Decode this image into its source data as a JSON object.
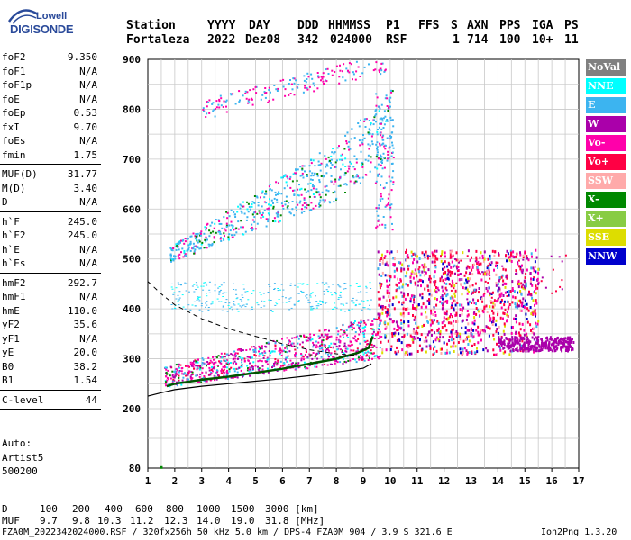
{
  "logo": {
    "line1": "Lowell",
    "line2": "DIGISONDE"
  },
  "header": {
    "labels": [
      "Station",
      "YYYY",
      "DAY",
      "DDD",
      "HHMMSS",
      "P1",
      "FFS",
      "S",
      "AXN",
      "PPS",
      "IGA",
      "PS"
    ],
    "values": [
      "Fortaleza",
      "2022",
      "Dez08",
      "342",
      "024000",
      "RSF",
      "1",
      "714",
      "100",
      "10+",
      "11"
    ]
  },
  "params": {
    "group1": [
      {
        "name": "foF2",
        "value": "9.350"
      },
      {
        "name": "foF1",
        "value": "N/A"
      },
      {
        "name": "foF1p",
        "value": "N/A"
      },
      {
        "name": "foE",
        "value": "N/A"
      },
      {
        "name": "foEp",
        "value": "0.53"
      },
      {
        "name": "fxI",
        "value": "9.70"
      },
      {
        "name": "foEs",
        "value": "N/A"
      },
      {
        "name": "fmin",
        "value": "1.75"
      }
    ],
    "group2": [
      {
        "name": "MUF(D)",
        "value": "31.77"
      },
      {
        "name": "M(D)",
        "value": "3.40"
      },
      {
        "name": "D",
        "value": "N/A"
      }
    ],
    "group3": [
      {
        "name": "h`F",
        "value": "245.0"
      },
      {
        "name": "h`F2",
        "value": "245.0"
      },
      {
        "name": "h`E",
        "value": "N/A"
      },
      {
        "name": "h`Es",
        "value": "N/A"
      }
    ],
    "group4": [
      {
        "name": "hmF2",
        "value": "292.7"
      },
      {
        "name": "hmF1",
        "value": "N/A"
      },
      {
        "name": "hmE",
        "value": "110.0"
      },
      {
        "name": "yF2",
        "value": "35.6"
      },
      {
        "name": "yF1",
        "value": "N/A"
      },
      {
        "name": "yE",
        "value": "20.0"
      },
      {
        "name": "B0",
        "value": "38.2"
      },
      {
        "name": "B1",
        "value": "1.54"
      }
    ],
    "group5": [
      {
        "name": "C-level",
        "value": "44"
      }
    ],
    "auto": [
      "Auto:",
      "Artist5",
      "500200"
    ]
  },
  "legend": [
    {
      "label": "NoVal",
      "color": "#808080"
    },
    {
      "label": "NNE",
      "color": "#00ffff"
    },
    {
      "label": "E",
      "color": "#3cb4f0"
    },
    {
      "label": "W",
      "color": "#aa00aa"
    },
    {
      "label": "Vo-",
      "color": "#ff00aa"
    },
    {
      "label": "Vo+",
      "color": "#ff0044"
    },
    {
      "label": "SSW",
      "color": "#ffaaaa"
    },
    {
      "label": "X-",
      "color": "#008800"
    },
    {
      "label": "X+",
      "color": "#88cc44"
    },
    {
      "label": "SSE",
      "color": "#dddd00"
    },
    {
      "label": "NNW",
      "color": "#0000cc"
    }
  ],
  "chart_data": {
    "type": "scatter",
    "title": "",
    "xlabel": "",
    "ylabel": "",
    "xlim": [
      1,
      17
    ],
    "ylim": [
      80,
      900
    ],
    "xticks": [
      "1",
      "2",
      "3",
      "4",
      "5",
      "6",
      "7",
      "8",
      "9",
      "10",
      "11",
      "12",
      "13",
      "14",
      "15",
      "16",
      "17"
    ],
    "yticks": [
      {
        "value": 80,
        "label": "80"
      },
      {
        "value": 200,
        "label": "200"
      },
      {
        "value": 300,
        "label": "300"
      },
      {
        "value": 400,
        "label": "400"
      },
      {
        "value": 500,
        "label": "500"
      },
      {
        "value": 600,
        "label": "600"
      },
      {
        "value": 700,
        "label": "700"
      },
      {
        "value": 800,
        "label": "800"
      },
      {
        "value": 900,
        "label": "900"
      }
    ],
    "grid": true,
    "traced_trace": [
      [
        1.7,
        245
      ],
      [
        2,
        250
      ],
      [
        3,
        258
      ],
      [
        4,
        264
      ],
      [
        5,
        272
      ],
      [
        6,
        280
      ],
      [
        7,
        290
      ],
      [
        8,
        300
      ],
      [
        8.8,
        312
      ],
      [
        9.2,
        322
      ],
      [
        9.35,
        345
      ]
    ],
    "profile_curve": [
      [
        1.0,
        225
      ],
      [
        1.5,
        232
      ],
      [
        2,
        238
      ],
      [
        3,
        245
      ],
      [
        4,
        250
      ],
      [
        5,
        255
      ],
      [
        6,
        260
      ],
      [
        7,
        266
      ],
      [
        8,
        273
      ],
      [
        9,
        281
      ],
      [
        9.3,
        290
      ]
    ],
    "dashed_curve": [
      [
        1.0,
        455
      ],
      [
        1.5,
        430
      ],
      [
        2,
        408
      ],
      [
        3,
        380
      ],
      [
        4,
        360
      ],
      [
        5,
        345
      ],
      [
        6,
        330
      ],
      [
        7,
        318
      ],
      [
        8,
        310
      ],
      [
        9,
        305
      ]
    ],
    "echo_groups": [
      {
        "name": "o-trace",
        "x": [
          1.6,
          9.4
        ],
        "y": [
          240,
          330
        ]
      },
      {
        "name": "second-hop",
        "x": [
          1.7,
          10.2
        ],
        "y": [
          490,
          720
        ]
      },
      {
        "name": "third-hop",
        "x": [
          2.8,
          9.6
        ],
        "y": [
          770,
          900
        ]
      },
      {
        "name": "spread-F",
        "x": [
          7.5,
          16.8
        ],
        "y": [
          300,
          530
        ]
      }
    ]
  },
  "footer": {
    "d_label": "D",
    "d_values": [
      "100",
      "200",
      "400",
      "600",
      "800",
      "1000",
      "1500",
      "3000 [km]"
    ],
    "muf_label": "MUF",
    "muf_values": [
      "9.7",
      "9.8",
      "10.3",
      "11.2",
      "12.3",
      "14.0",
      "19.0",
      "31.8 [MHz]"
    ],
    "info": "FZA0M_2022342024000.RSF / 320fx256h 50 kHz 5.0 km / DPS-4 FZA0M 904 / 3.9 S 321.6 E",
    "version": "Ion2Png 1.3.20"
  }
}
